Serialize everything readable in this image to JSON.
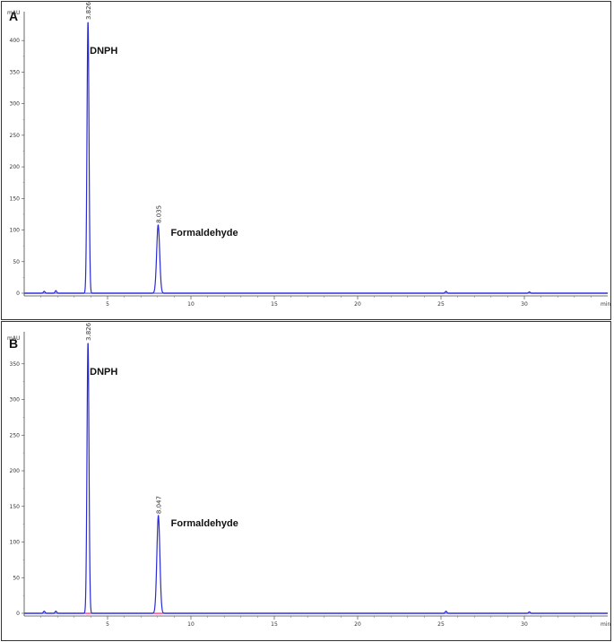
{
  "chart_data": [
    {
      "type": "line",
      "panel_label": "A",
      "ylabel": "mAU",
      "xlabel": "min",
      "xlim": [
        0,
        35
      ],
      "ylim": [
        0,
        440
      ],
      "x_ticks": [
        5,
        10,
        15,
        20,
        25,
        30
      ],
      "y_ticks": [
        0,
        50,
        100,
        150,
        200,
        250,
        300,
        350,
        400
      ],
      "line_color": "#2b2bd6",
      "baseline_color": "#8888ee",
      "grid": false,
      "peaks": [
        {
          "name": "DNPH",
          "retention_time": "3.826",
          "x": 3.826,
          "height": 430
        },
        {
          "name": "Formaldehyde",
          "retention_time": "8.035",
          "x": 8.035,
          "height": 108
        }
      ],
      "minor_peaks": [
        {
          "x": 1.2,
          "height": 3
        },
        {
          "x": 1.9,
          "height": 4
        },
        {
          "x": 25.3,
          "height": 3
        },
        {
          "x": 30.3,
          "height": 2
        }
      ]
    },
    {
      "type": "line",
      "panel_label": "B",
      "ylabel": "mAU",
      "xlabel": "min",
      "xlim": [
        0,
        35
      ],
      "ylim": [
        0,
        390
      ],
      "x_ticks": [
        5,
        10,
        15,
        20,
        25,
        30
      ],
      "y_ticks": [
        0,
        50,
        100,
        150,
        200,
        250,
        300,
        350
      ],
      "line_color": "#2b2bd6",
      "baseline_color": "#8888ee",
      "grid": false,
      "peaks": [
        {
          "name": "DNPH",
          "retention_time": "3.826",
          "x": 3.826,
          "height": 380
        },
        {
          "name": "Formaldehyde",
          "retention_time": "8.047",
          "x": 8.047,
          "height": 137
        }
      ],
      "minor_peaks": [
        {
          "x": 1.2,
          "height": 3
        },
        {
          "x": 1.9,
          "height": 3
        },
        {
          "x": 25.3,
          "height": 3
        },
        {
          "x": 30.3,
          "height": 2
        }
      ]
    }
  ]
}
